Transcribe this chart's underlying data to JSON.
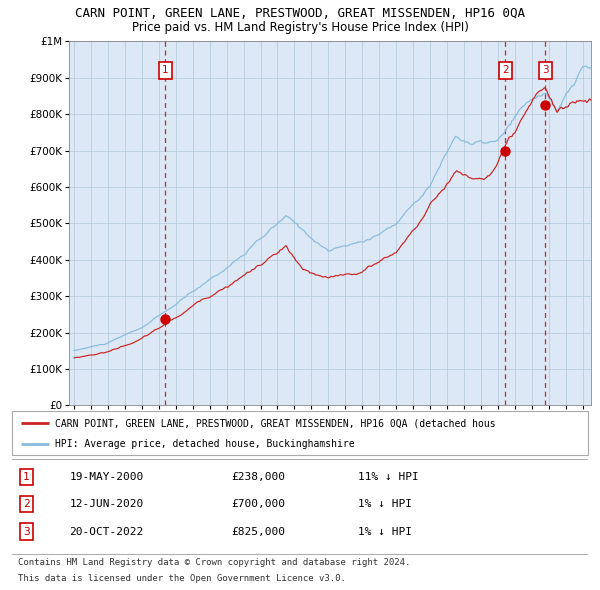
{
  "title": "CARN POINT, GREEN LANE, PRESTWOOD, GREAT MISSENDEN, HP16 0QA",
  "subtitle": "Price paid vs. HM Land Registry's House Price Index (HPI)",
  "legend_line1": "CARN POINT, GREEN LANE, PRESTWOOD, GREAT MISSENDEN, HP16 0QA (detached hous",
  "legend_line2": "HPI: Average price, detached house, Buckinghamshire",
  "table_rows": [
    {
      "num": "1",
      "date": "19-MAY-2000",
      "price": "£238,000",
      "hpi": "11% ↓ HPI"
    },
    {
      "num": "2",
      "date": "12-JUN-2020",
      "price": "£700,000",
      "hpi": "1% ↓ HPI"
    },
    {
      "num": "3",
      "date": "20-OCT-2022",
      "price": "£825,000",
      "hpi": "1% ↓ HPI"
    }
  ],
  "footer_line1": "Contains HM Land Registry data © Crown copyright and database right 2024.",
  "footer_line2": "This data is licensed under the Open Government Licence v3.0.",
  "sale_dates": [
    2000.38,
    2020.44,
    2022.8
  ],
  "sale_prices": [
    238000,
    700000,
    825000
  ],
  "vline_color": "#cc0000",
  "hpi_color": "#88bbdd",
  "price_color": "#cc2222",
  "marker_color": "#cc0000",
  "background_color": "#ddeeff",
  "plot_bg": "#dce8f5",
  "ylim": [
    0,
    1000000
  ],
  "xlim_start": 1994.7,
  "xlim_end": 2025.5,
  "title_fontsize": 9,
  "subtitle_fontsize": 8.5
}
